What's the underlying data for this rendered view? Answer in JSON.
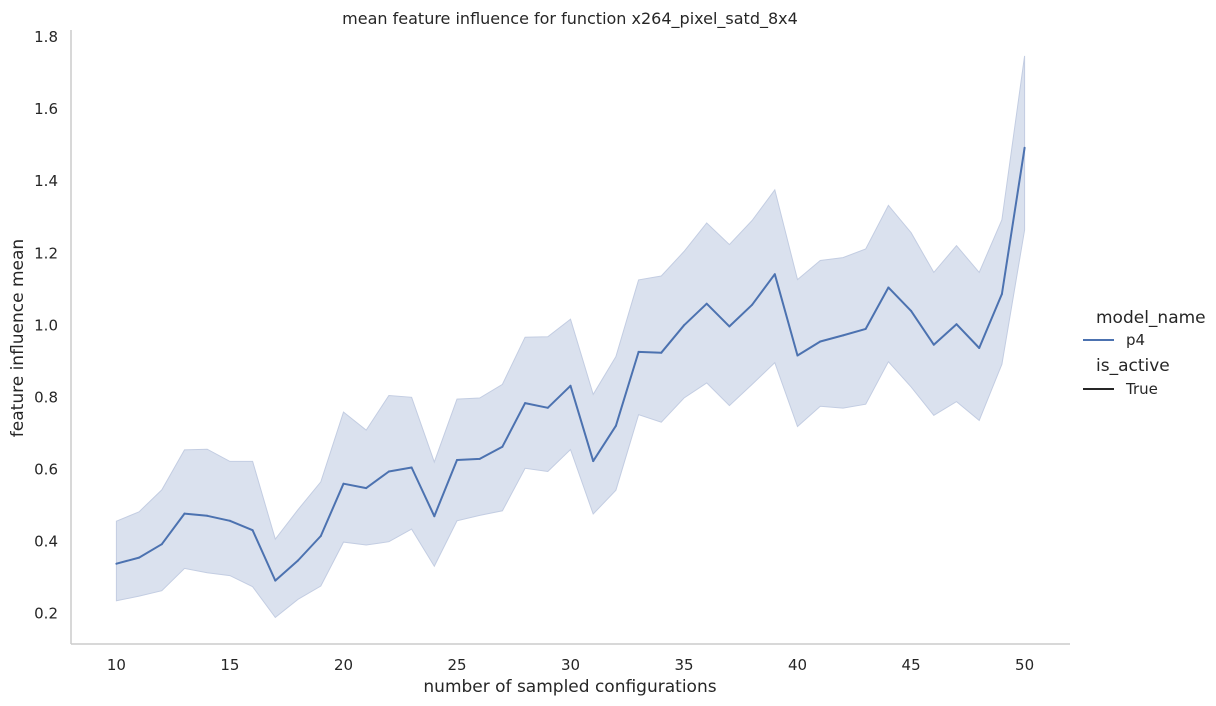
{
  "chart_data": {
    "type": "line",
    "title": "mean feature influence for function x264_pixel_satd_8x4",
    "xlabel": "number of sampled configurations",
    "ylabel": "feature influence mean",
    "xlim": [
      8,
      52
    ],
    "ylim": [
      0.115,
      1.82
    ],
    "xticks": [
      10,
      15,
      20,
      25,
      30,
      35,
      40,
      45,
      50
    ],
    "yticks": [
      0.2,
      0.4,
      0.6,
      0.8,
      1.0,
      1.2,
      1.4,
      1.6,
      1.8
    ],
    "ytick_labels": [
      "0.2",
      "0.4",
      "0.6",
      "0.8",
      "1.0",
      "1.2",
      "1.4",
      "1.6",
      "1.8"
    ],
    "grid": false,
    "legend_position": "right",
    "line_color": "#4c72b0",
    "band_color": "#dae1ee",
    "series": [
      {
        "name": "p4",
        "x": [
          10,
          11,
          12,
          13,
          14,
          15,
          16,
          17,
          18,
          19,
          20,
          21,
          22,
          23,
          24,
          25,
          26,
          27,
          28,
          29,
          30,
          31,
          32,
          33,
          34,
          35,
          36,
          37,
          38,
          39,
          40,
          41,
          42,
          43,
          44,
          45,
          46,
          47,
          48,
          49,
          50
        ],
        "y": [
          0.338,
          0.355,
          0.392,
          0.477,
          0.471,
          0.457,
          0.431,
          0.291,
          0.347,
          0.415,
          0.56,
          0.548,
          0.594,
          0.605,
          0.47,
          0.626,
          0.629,
          0.663,
          0.784,
          0.771,
          0.832,
          0.623,
          0.721,
          0.926,
          0.924,
          1.0,
          1.06,
          0.997,
          1.057,
          1.142,
          0.916,
          0.955,
          0.972,
          0.99,
          1.105,
          1.04,
          0.946,
          1.003,
          0.937,
          1.087,
          1.493
        ],
        "ci_lower": [
          0.235,
          0.248,
          0.263,
          0.325,
          0.313,
          0.305,
          0.274,
          0.189,
          0.239,
          0.276,
          0.398,
          0.39,
          0.399,
          0.434,
          0.331,
          0.457,
          0.472,
          0.485,
          0.603,
          0.594,
          0.655,
          0.476,
          0.542,
          0.752,
          0.731,
          0.798,
          0.84,
          0.777,
          0.836,
          0.896,
          0.719,
          0.775,
          0.77,
          0.781,
          0.899,
          0.829,
          0.75,
          0.788,
          0.736,
          0.892,
          1.265
        ],
        "ci_upper": [
          0.456,
          0.482,
          0.543,
          0.654,
          0.656,
          0.622,
          0.622,
          0.406,
          0.488,
          0.565,
          0.759,
          0.709,
          0.805,
          0.8,
          0.62,
          0.795,
          0.798,
          0.836,
          0.967,
          0.968,
          1.017,
          0.808,
          0.913,
          1.126,
          1.137,
          1.205,
          1.284,
          1.224,
          1.291,
          1.376,
          1.127,
          1.18,
          1.188,
          1.212,
          1.333,
          1.257,
          1.147,
          1.221,
          1.147,
          1.293,
          1.748
        ]
      }
    ],
    "legend": {
      "hue_title": "model_name",
      "hue_entries": [
        {
          "label": "p4",
          "color": "#4c72b0"
        }
      ],
      "style_title": "is_active",
      "style_entries": [
        {
          "label": "True",
          "color": "#262626"
        }
      ]
    }
  }
}
